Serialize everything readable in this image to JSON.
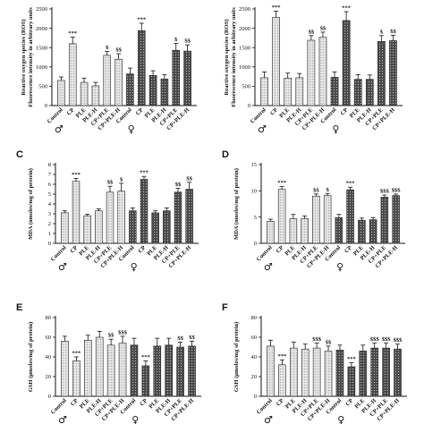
{
  "figure": {
    "background": "#ffffff"
  },
  "chart_data": [
    {
      "type": "bar",
      "panel": "",
      "ylabel": "Reactive oxygen species (ROS)\nFluorescence intensity in arbitrary units",
      "ylim": [
        0,
        2500
      ],
      "yticks": [
        0,
        500,
        1000,
        1500,
        2000,
        2500
      ],
      "categories": [
        "Control",
        "CP",
        "PLE",
        "PLE-H",
        "CP+PLE",
        "CP+PLE-H",
        "Control",
        "CP",
        "PLE",
        "PLE-H",
        "CP+PLE",
        "CP+PLE-H"
      ],
      "sex_groups": [
        "♂",
        "♀"
      ],
      "values": [
        650,
        1600,
        600,
        510,
        1300,
        1200,
        820,
        1940,
        780,
        690,
        1430,
        1410
      ],
      "errors": [
        90,
        170,
        110,
        90,
        100,
        140,
        150,
        190,
        120,
        110,
        180,
        160
      ],
      "significance": [
        "",
        "***",
        "",
        "",
        "$",
        "$$",
        "",
        "***",
        "",
        "",
        "$",
        "$$"
      ]
    },
    {
      "type": "bar",
      "panel": "",
      "ylabel": "Reactive oxygen species (ROS)\nFluorescence intensity in arbitrary units",
      "ylim": [
        0,
        2500
      ],
      "yticks": [
        0,
        500,
        1000,
        1500,
        2000,
        2500
      ],
      "categories": [
        "Control",
        "CP",
        "PLE",
        "PLE-H",
        "CP+PLE",
        "CP+PLE-H",
        "Control",
        "CP",
        "PLE",
        "PLE-H",
        "CP+PLE",
        "CP+PLE-H"
      ],
      "sex_groups": [
        "♂",
        "♀"
      ],
      "values": [
        720,
        2280,
        710,
        720,
        1690,
        1770,
        730,
        2200,
        680,
        680,
        1660,
        1680
      ],
      "errors": [
        150,
        160,
        130,
        110,
        120,
        130,
        140,
        230,
        120,
        110,
        150,
        140
      ],
      "significance": [
        "",
        "***",
        "",
        "",
        "$$",
        "$$",
        "",
        "***",
        "",
        "",
        "$",
        "$$"
      ]
    },
    {
      "type": "bar",
      "panel": "C",
      "ylabel": "MDA (nmoles/mg of protein)",
      "ylim": [
        0,
        8
      ],
      "yticks": [
        0,
        1,
        2,
        3,
        4,
        5,
        6,
        7,
        8
      ],
      "categories": [
        "Control",
        "CP",
        "PLE",
        "PLE-H",
        "CP+PLE",
        "CP+PLE-H",
        "Control",
        "CP",
        "PLE",
        "PLE-H",
        "CP+PLE",
        "CP+PLE-H"
      ],
      "sex_groups": [
        "♂",
        "♀"
      ],
      "values": [
        3.1,
        6.3,
        2.8,
        3.3,
        5.2,
        5.3,
        3.3,
        6.5,
        3.1,
        3.3,
        5.2,
        5.5
      ],
      "errors": [
        0.2,
        0.3,
        0.15,
        0.2,
        0.6,
        0.8,
        0.3,
        0.3,
        0.2,
        0.3,
        0.4,
        0.7
      ],
      "significance": [
        "",
        "***",
        "",
        "",
        "$$",
        "$",
        "",
        "***",
        "",
        "",
        "$$",
        "$$"
      ]
    },
    {
      "type": "bar",
      "panel": "D",
      "ylabel": "MDA (nmoles/mg of protein)",
      "ylim": [
        0,
        15
      ],
      "yticks": [
        0,
        5,
        10,
        15
      ],
      "categories": [
        "Control",
        "CP",
        "PLE",
        "PLE-H",
        "CP+PLE",
        "CP+PLE-H",
        "Control",
        "CP",
        "PLE",
        "PLE-H",
        "CP+PLE",
        "CP+PLE-H"
      ],
      "sex_groups": [
        "♂",
        "♀"
      ],
      "values": [
        4.2,
        10.3,
        4.7,
        4.7,
        9.0,
        9.1,
        4.9,
        10.2,
        4.4,
        4.5,
        8.8,
        9.1
      ],
      "errors": [
        0.4,
        0.5,
        0.8,
        0.5,
        0.4,
        0.4,
        0.6,
        0.5,
        0.4,
        0.4,
        0.4,
        0.3
      ],
      "significance": [
        "",
        "***",
        "",
        "",
        "$$",
        "$",
        "",
        "***",
        "",
        "",
        "$$$",
        "$$$"
      ]
    },
    {
      "type": "bar",
      "panel": "E",
      "ylabel": "GSH (µmoles/mg of protein)",
      "ylim": [
        0,
        80
      ],
      "yticks": [
        0,
        20,
        40,
        60,
        80
      ],
      "categories": [
        "Control",
        "CP",
        "PLE",
        "PLE-H",
        "CP+PLE",
        "CP+PLE-H",
        "Control",
        "CP",
        "PLE",
        "PLE-H",
        "CP+PLE",
        "CP+PLE-H"
      ],
      "sex_groups": [
        "♂",
        "♀"
      ],
      "values": [
        56,
        36,
        57,
        60,
        52,
        54,
        52,
        31,
        51,
        52,
        50,
        51
      ],
      "errors": [
        5,
        4,
        5,
        6,
        6,
        7,
        7,
        5,
        8,
        7,
        5,
        5
      ],
      "significance": [
        "",
        "***",
        "",
        "",
        "$$",
        "$$$",
        "",
        "***",
        "",
        "",
        "$$",
        "$$"
      ]
    },
    {
      "type": "bar",
      "panel": "F",
      "ylabel": "GSH (µmoles/mg of protein)",
      "ylim": [
        0,
        80
      ],
      "yticks": [
        0,
        20,
        40,
        60,
        80
      ],
      "categories": [
        "Control",
        "CP",
        "PLE",
        "PLE-H",
        "CP+PLE",
        "CP+PLE-H",
        "Control",
        "CP",
        "PLE",
        "PLE-H",
        "CP+PLE",
        "CP+PLE-H"
      ],
      "sex_groups": [
        "♂",
        "♀"
      ],
      "values": [
        51,
        32,
        49,
        48,
        49,
        46,
        47,
        30,
        46,
        49,
        49,
        48
      ],
      "errors": [
        6,
        5,
        6,
        5,
        5,
        5,
        5,
        4,
        6,
        5,
        5,
        5
      ],
      "significance": [
        "",
        "***",
        "",
        "",
        "$$$",
        "$$",
        "",
        "***",
        "",
        "$$$",
        "$$$",
        "$$$"
      ]
    }
  ]
}
